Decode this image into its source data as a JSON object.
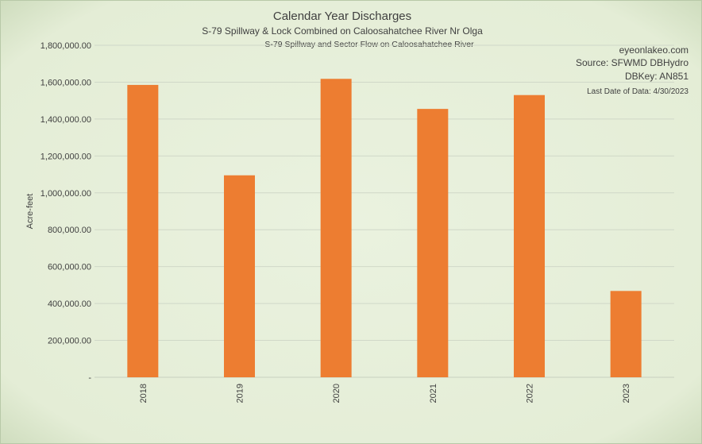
{
  "colors": {
    "background": "#e6efd9",
    "bar": "#ed7d31",
    "grid": "#d0d8c8",
    "text": "#404040"
  },
  "chart_data": {
    "type": "bar",
    "title": "Calendar Year Discharges",
    "subtitle": "S-79 Spillway & Lock Combined on Caloosahatchee River Nr Olga",
    "subtitle2": "S-79 Spillway and Sector Flow on Caloosahatchee River",
    "ylabel": "Acre-feet",
    "xlabel": "",
    "categories": [
      "2018",
      "2019",
      "2020",
      "2021",
      "2022",
      "2023"
    ],
    "values": [
      1585000,
      1095000,
      1618000,
      1455000,
      1530000,
      468000
    ],
    "ylim": [
      0,
      1800000
    ],
    "yticks": [
      {
        "value": 0,
        "label": "-"
      },
      {
        "value": 200000,
        "label": "200,000.00"
      },
      {
        "value": 400000,
        "label": "400,000.00"
      },
      {
        "value": 600000,
        "label": "600,000.00"
      },
      {
        "value": 800000,
        "label": "800,000.00"
      },
      {
        "value": 1000000,
        "label": "1,000,000.00"
      },
      {
        "value": 1200000,
        "label": "1,200,000.00"
      },
      {
        "value": 1400000,
        "label": "1,400,000.00"
      },
      {
        "value": 1600000,
        "label": "1,600,000.00"
      },
      {
        "value": 1800000,
        "label": "1,800,000.00"
      }
    ],
    "grid": true,
    "legend": "none",
    "annotations": [
      "eyeonlakeo.com",
      "Source: SFWMD DBHydro",
      "DBKey: AN851",
      "Last Date of Data: 4/30/2023"
    ]
  }
}
